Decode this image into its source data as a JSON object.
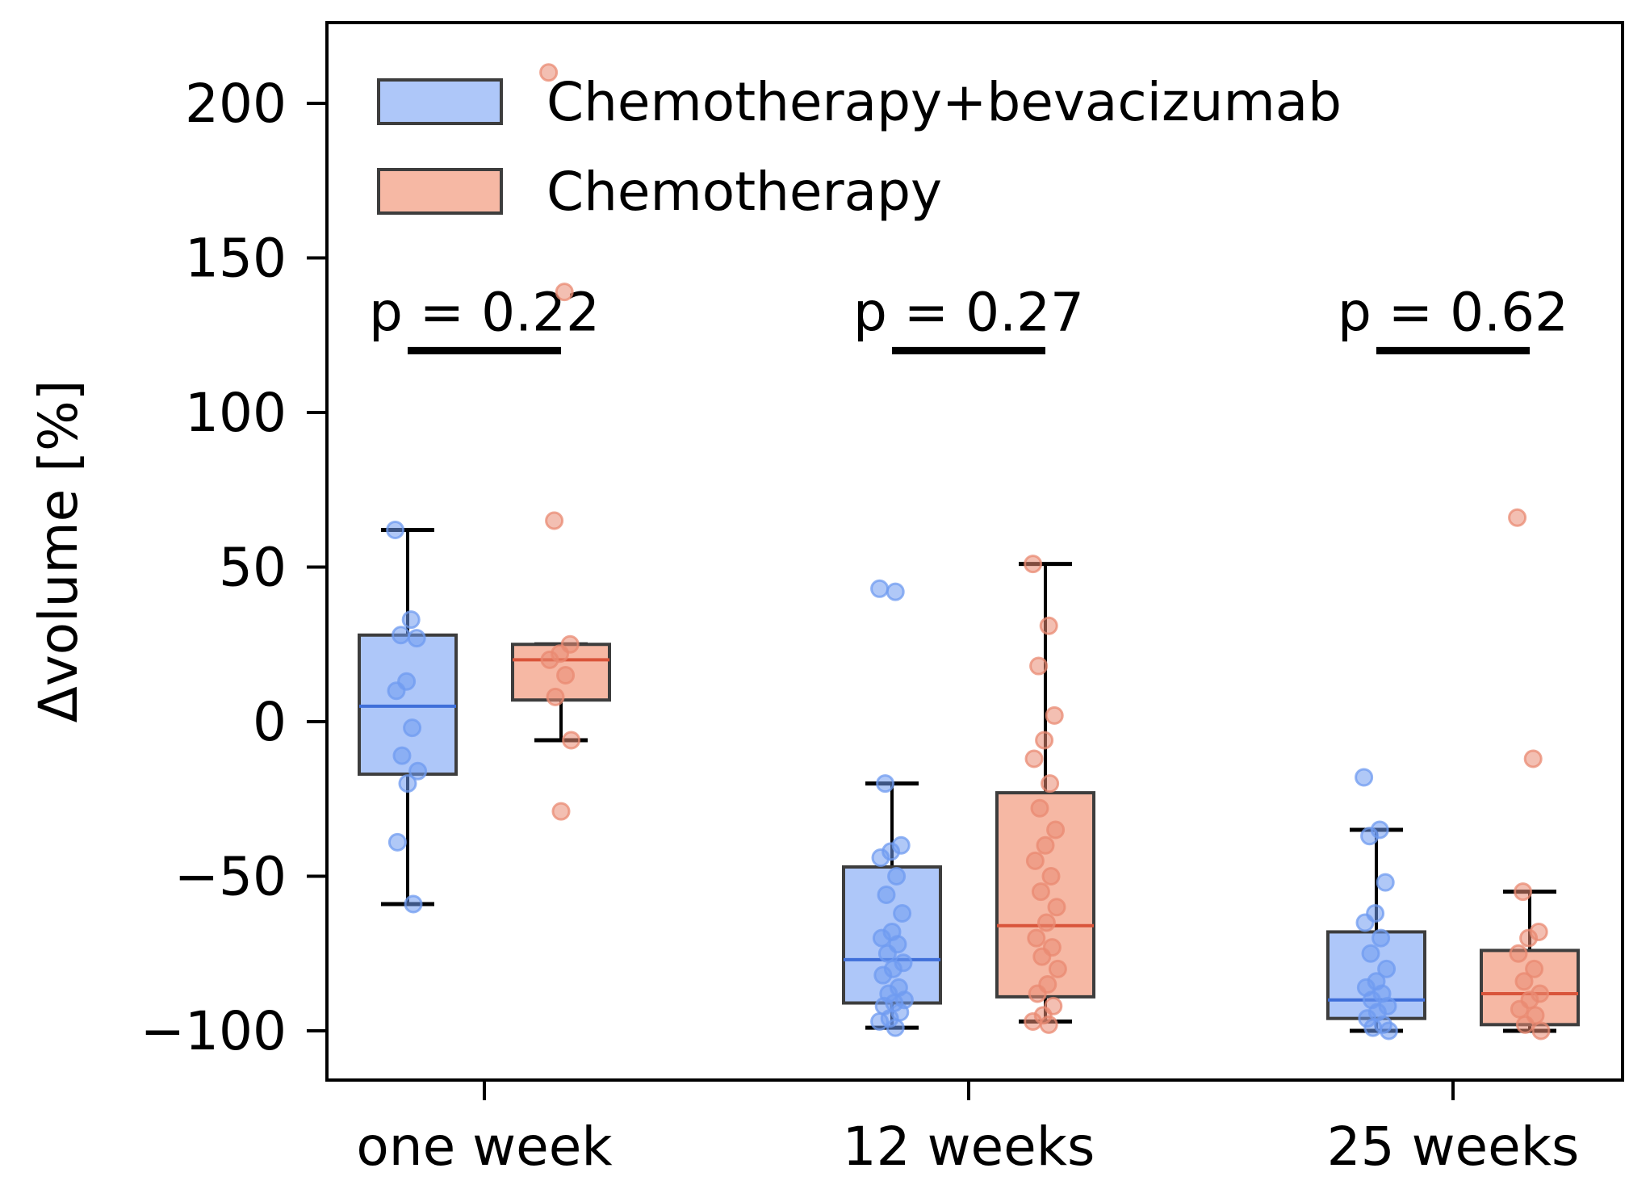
{
  "colors": {
    "series_1": "#6f9bf0",
    "series_1_fill": "#aec7f9",
    "series_1_edge": "#3d3d3d",
    "series_1_median": "#3f6fd9",
    "series_2": "#ea8a72",
    "series_2_fill": "#f6b8a4",
    "series_2_median": "#d9543a",
    "axis": "#000000"
  },
  "chart_data": {
    "type": "box",
    "title": "",
    "xlabel": "",
    "ylabel": "Δvolume [%]",
    "ylim": [
      -115,
      225
    ],
    "yticks": [
      -100,
      -50,
      0,
      50,
      100,
      150,
      200
    ],
    "ytick_labels": [
      "−100",
      "−50",
      "0",
      "50",
      "100",
      "150",
      "200"
    ],
    "categories": [
      "one week",
      "12 weeks",
      "25 weeks"
    ],
    "legend": {
      "location": "top-left",
      "entries": [
        "Chemotherapy+bevacizumab",
        "Chemotherapy"
      ]
    },
    "p_values": [
      "p = 0.22",
      "p = 0.27",
      "p = 0.62"
    ],
    "p_bar_y": 120,
    "series": [
      {
        "name": "Chemotherapy+bevacizumab",
        "boxes": [
          {
            "whislo": -59,
            "q1": -17,
            "med": 5,
            "q3": 28,
            "whishi": 62
          },
          {
            "whislo": -99,
            "q1": -91,
            "med": -77,
            "q3": -47,
            "whishi": -20
          },
          {
            "whislo": -100,
            "q1": -96,
            "med": -90,
            "q3": -68,
            "whishi": -35
          }
        ],
        "points": [
          [
            62,
            33,
            28,
            27,
            13,
            10,
            -2,
            -11,
            -16,
            -20,
            -39,
            -59
          ],
          [
            43,
            42,
            -20,
            -40,
            -42,
            -44,
            -50,
            -56,
            -62,
            -68,
            -70,
            -72,
            -75,
            -78,
            -80,
            -82,
            -86,
            -88,
            -90,
            -91,
            -92,
            -94,
            -96,
            -97,
            -99
          ],
          [
            -18,
            -35,
            -37,
            -52,
            -62,
            -65,
            -70,
            -75,
            -80,
            -84,
            -86,
            -88,
            -90,
            -92,
            -94,
            -96,
            -98,
            -99,
            -100
          ]
        ]
      },
      {
        "name": "Chemotherapy",
        "boxes": [
          {
            "whislo": -6,
            "q1": 7,
            "med": 20,
            "q3": 25,
            "whishi": 25
          },
          {
            "whislo": -97,
            "q1": -89,
            "med": -66,
            "q3": -23,
            "whishi": 51
          },
          {
            "whislo": -100,
            "q1": -98,
            "med": -88,
            "q3": -74,
            "whishi": -55
          }
        ],
        "points": [
          [
            210,
            139,
            65,
            25,
            22,
            20,
            15,
            8,
            -6,
            -29
          ],
          [
            51,
            31,
            18,
            2,
            -6,
            -12,
            -20,
            -28,
            -35,
            -40,
            -45,
            -50,
            -55,
            -60,
            -65,
            -70,
            -73,
            -76,
            -80,
            -85,
            -88,
            -92,
            -95,
            -97,
            -98
          ],
          [
            66,
            -12,
            -55,
            -68,
            -70,
            -75,
            -80,
            -84,
            -88,
            -90,
            -93,
            -95,
            -98,
            -100
          ]
        ]
      }
    ]
  }
}
